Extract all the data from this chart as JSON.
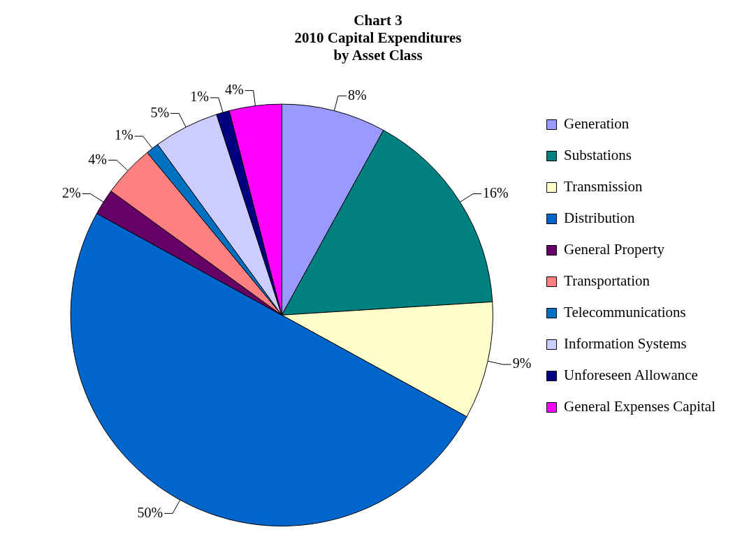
{
  "chart_data": {
    "type": "pie",
    "title": "Chart 3\n2010 Capital Expenditures\nby Asset Class",
    "categories": [
      "Generation",
      "Substations",
      "Transmission",
      "Distribution",
      "General Property",
      "Transportation",
      "Telecommunications",
      "Information Systems",
      "Unforeseen Allowance",
      "General Expenses Capital"
    ],
    "values": [
      8,
      16,
      9,
      50,
      2,
      4,
      1,
      5,
      1,
      4
    ],
    "value_labels": [
      "8%",
      "16%",
      "9%",
      "50%",
      "2%",
      "4%",
      "1%",
      "5%",
      "1%",
      "4%"
    ],
    "colors": [
      "#9999ff",
      "#008080",
      "#ffffcc",
      "#0066cc",
      "#660066",
      "#ff8080",
      "#0070c0",
      "#ccccff",
      "#000080",
      "#ff00ff"
    ],
    "legend": "right"
  }
}
